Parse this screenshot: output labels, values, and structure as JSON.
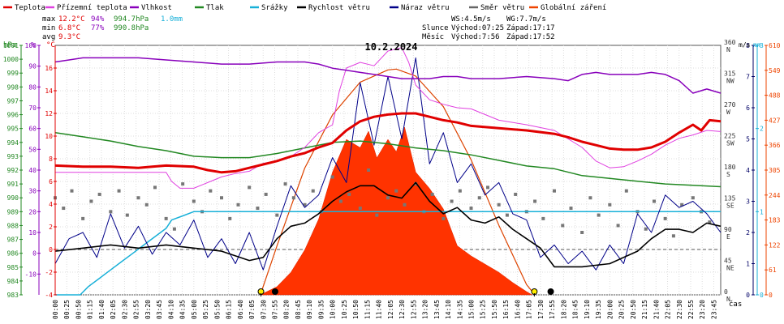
{
  "chart_data": {
    "type": "line",
    "title": "10.2.2024",
    "xlabel": "čas",
    "legend": [
      {
        "name": "Teplota",
        "color": "#e00000"
      },
      {
        "name": "Přízemní teplota",
        "color": "#e040e0"
      },
      {
        "name": "Vlhkost",
        "color": "#8800bb"
      },
      {
        "name": "Tlak",
        "color": "#228822"
      },
      {
        "name": "Srážky",
        "color": "#18b0d8"
      },
      {
        "name": "Rychlost větru",
        "color": "#000000"
      },
      {
        "name": "Náraz větru",
        "color": "#000088"
      },
      {
        "name": "Směr větru",
        "color": "#666666"
      },
      {
        "name": "Globální záření",
        "color": "#ee4400"
      }
    ],
    "stats": {
      "max": {
        "label": "max",
        "temp": "12.2°C",
        "hum": "94%",
        "press": "994.7hPa",
        "rain": "1.0mm"
      },
      "min": {
        "label": "min",
        "temp": "6.8°C",
        "hum": "77%",
        "press": "990.8hPa"
      },
      "avg": {
        "label": "avg",
        "temp": "9.3°C"
      }
    },
    "info": {
      "ws": "WS:4.5m/s",
      "wg": "WG:7.7m/s",
      "sun_label": "Slunce",
      "sun_rise": "Východ:07:25",
      "sun_set": "Západ:17:17",
      "moon_label": "Měsíc",
      "moon_rise": "Východ:7:56",
      "moon_set": "Západ:17:52"
    },
    "axes": {
      "hpa": {
        "unit": "hPa",
        "ticks": [
          "983",
          "984",
          "985",
          "986",
          "987",
          "988",
          "989",
          "990",
          "991",
          "992",
          "993",
          "994",
          "995",
          "996",
          "997",
          "998",
          "999",
          "1000",
          "1001"
        ],
        "range": [
          983,
          1001
        ]
      },
      "pct": {
        "unit": "%",
        "ticks": [
          "-10",
          "0",
          "10",
          "20",
          "30",
          "40",
          "50",
          "60",
          "70",
          "80",
          "90",
          "100"
        ],
        "range": [
          -20,
          100
        ]
      },
      "temp": {
        "unit": "°C",
        "ticks": [
          "-4",
          "-2",
          "0",
          "2",
          "4",
          "6",
          "8",
          "10",
          "12",
          "14",
          "16"
        ],
        "range": [
          -4,
          18
        ]
      },
      "dir": {
        "ticks": [
          {
            "v": "0",
            "l": "N"
          },
          {
            "v": "45",
            "l": "NE"
          },
          {
            "v": "90",
            "l": "E"
          },
          {
            "v": "135",
            "l": "SE"
          },
          {
            "v": "180",
            "l": "S"
          },
          {
            "v": "225",
            "l": "SW"
          },
          {
            "v": "270",
            "l": "W"
          },
          {
            "v": "315",
            "l": "NW"
          },
          {
            "v": "360",
            "l": "N"
          }
        ],
        "range": [
          0,
          360
        ]
      },
      "ms": {
        "unit": "m/s",
        "ticks": [
          "0",
          "1",
          "2",
          "3",
          "4",
          "5",
          "6",
          "7",
          "8"
        ],
        "range": [
          0,
          8
        ]
      },
      "mm": {
        "unit": "mm",
        "ticks": [
          "0",
          "1",
          "2",
          "3"
        ],
        "range": [
          0,
          3
        ]
      },
      "wm2": {
        "ticks": [
          "0",
          "61",
          "122",
          "183",
          "244",
          "305",
          "366",
          "427",
          "488",
          "549",
          "610"
        ],
        "range": [
          0,
          610
        ]
      }
    },
    "x_labels": [
      "00:00",
      "00:25",
      "00:50",
      "01:15",
      "01:40",
      "02:05",
      "02:30",
      "02:55",
      "03:20",
      "03:45",
      "04:10",
      "04:35",
      "05:00",
      "05:25",
      "05:50",
      "06:15",
      "06:40",
      "07:05",
      "07:30",
      "07:55",
      "08:20",
      "08:45",
      "09:10",
      "09:35",
      "10:00",
      "10:25",
      "10:50",
      "11:15",
      "11:40",
      "12:05",
      "12:30",
      "12:55",
      "13:20",
      "13:45",
      "14:10",
      "14:35",
      "15:00",
      "15:25",
      "15:50",
      "16:15",
      "16:40",
      "17:05",
      "17:30",
      "17:55",
      "18:20",
      "18:45",
      "19:10",
      "19:35",
      "20:00",
      "20:25",
      "20:50",
      "21:15",
      "21:40",
      "22:05",
      "22:30",
      "22:55",
      "23:20",
      "23:45"
    ],
    "series": {
      "temperature": {
        "name": "Teplota",
        "x_hours": [
          0,
          1,
          2,
          3,
          3.5,
          4,
          5,
          5.5,
          6,
          6.5,
          7,
          7.5,
          8,
          8.5,
          9,
          9.5,
          10,
          10.5,
          11,
          11.5,
          12,
          12.5,
          13,
          13.5,
          14,
          14.5,
          15,
          16,
          17,
          18,
          18.5,
          19,
          19.5,
          20,
          20.5,
          21,
          21.5,
          22,
          22.5,
          23,
          23.3,
          23.6,
          24
        ],
        "values": [
          7.4,
          7.3,
          7.3,
          7.2,
          7.3,
          7.4,
          7.3,
          7.0,
          6.8,
          6.9,
          7.2,
          7.5,
          7.8,
          8.2,
          8.5,
          9.0,
          9.4,
          10.5,
          11.3,
          11.7,
          11.9,
          12.0,
          12.0,
          11.7,
          11.4,
          11.2,
          10.9,
          10.7,
          10.5,
          10.2,
          9.9,
          9.5,
          9.2,
          8.9,
          8.8,
          8.8,
          9.0,
          9.5,
          10.3,
          11.0,
          10.5,
          11.4,
          11.3
        ]
      },
      "ground_temp": {
        "name": "Přízemní teplota",
        "x_hours": [
          0,
          1,
          2,
          3,
          4,
          4.2,
          4.5,
          5,
          5.5,
          6,
          6.5,
          7,
          7.5,
          8,
          8.5,
          9,
          9.5,
          10,
          10.25,
          10.5,
          11,
          11.5,
          12,
          12.5,
          12.75,
          13,
          13.5,
          14,
          14.5,
          15,
          16,
          17,
          18,
          19,
          19.5,
          20,
          20.5,
          21,
          21.5,
          22,
          22.5,
          23,
          23.5,
          24
        ],
        "values": [
          6.8,
          6.8,
          6.8,
          6.8,
          6.8,
          6.0,
          5.4,
          5.4,
          5.9,
          6.4,
          6.7,
          6.9,
          7.6,
          7.8,
          8.2,
          9.0,
          10.3,
          11.0,
          14.0,
          16.0,
          16.5,
          16.2,
          17.5,
          17.8,
          16.5,
          14.5,
          13.2,
          12.8,
          12.5,
          12.4,
          11.4,
          11.0,
          10.5,
          9.0,
          7.8,
          7.2,
          7.3,
          7.8,
          8.4,
          9.2,
          9.8,
          10.1,
          10.5,
          10.4
        ]
      },
      "humidity": {
        "name": "Vlhkost",
        "x_hours": [
          0,
          0.5,
          1,
          2,
          3,
          4,
          5,
          6,
          7,
          8,
          9,
          9.5,
          10,
          10.5,
          11,
          11.5,
          12,
          12.5,
          13,
          13.5,
          14,
          14.5,
          15,
          16,
          17,
          18,
          18.5,
          19,
          19.5,
          20,
          20.5,
          21,
          21.5,
          22,
          22.5,
          23,
          23.5,
          24
        ],
        "values": [
          92,
          93,
          94,
          94,
          94,
          93,
          92,
          91,
          91,
          92,
          92,
          91,
          89,
          88,
          87,
          86,
          85,
          84,
          84,
          84,
          85,
          85,
          84,
          84,
          85,
          84,
          83,
          86,
          87,
          86,
          86,
          86,
          87,
          86,
          83,
          77,
          79,
          77
        ]
      },
      "pressure": {
        "name": "Tlak",
        "x_hours": [
          0,
          1,
          2,
          3,
          4,
          5,
          6,
          7,
          8,
          9,
          10,
          11,
          12,
          13,
          14,
          15,
          16,
          17,
          18,
          19,
          20,
          21,
          22,
          23,
          24
        ],
        "values": [
          994.7,
          994.4,
          994.1,
          993.7,
          993.4,
          993.0,
          992.9,
          992.9,
          993.2,
          993.6,
          994.0,
          994.1,
          993.9,
          993.6,
          993.4,
          993.1,
          992.7,
          992.3,
          992.1,
          991.6,
          991.4,
          991.2,
          991.0,
          990.9,
          990.8
        ]
      },
      "rain": {
        "name": "Srážky",
        "x_hours": [
          0,
          0.9,
          1.2,
          1.6,
          2.0,
          2.4,
          2.8,
          3.2,
          3.6,
          4.0,
          4.2,
          4.6,
          5.0,
          5.5,
          24
        ],
        "values": [
          0,
          0,
          0.1,
          0.2,
          0.3,
          0.4,
          0.5,
          0.6,
          0.7,
          0.8,
          0.9,
          0.95,
          1.0,
          1.0,
          1.0
        ]
      },
      "wind_speed": {
        "name": "Rychlost větru",
        "x_hours": [
          0,
          1,
          2,
          3,
          4,
          5,
          6,
          7,
          7.5,
          8,
          8.5,
          9,
          9.5,
          10,
          10.5,
          11,
          11.5,
          12,
          12.5,
          13,
          13.5,
          14,
          14.5,
          15,
          15.5,
          16,
          16.5,
          17,
          17.5,
          18,
          19,
          20,
          21,
          21.5,
          22,
          22.5,
          23,
          23.5,
          24
        ],
        "values": [
          1.4,
          1.5,
          1.6,
          1.5,
          1.6,
          1.5,
          1.4,
          1.1,
          1.2,
          1.8,
          2.2,
          2.3,
          2.6,
          3.0,
          3.3,
          3.5,
          3.5,
          3.2,
          3.1,
          3.6,
          3.0,
          2.6,
          2.8,
          2.4,
          2.3,
          2.5,
          2.1,
          1.8,
          1.5,
          0.9,
          0.9,
          1.0,
          1.4,
          1.8,
          2.1,
          2.1,
          2.0,
          2.3,
          2.2
        ]
      },
      "wind_gust": {
        "name": "Náraz větru",
        "x_hours": [
          0,
          0.5,
          1,
          1.5,
          2,
          2.5,
          3,
          3.5,
          4,
          4.5,
          5,
          5.5,
          6,
          6.5,
          7,
          7.5,
          8,
          8.5,
          9,
          9.5,
          10,
          10.5,
          11,
          11.5,
          12,
          12.5,
          13,
          13.5,
          14,
          14.5,
          15,
          15.5,
          16,
          16.5,
          17,
          17.5,
          18,
          18.5,
          19,
          19.5,
          20,
          20.5,
          21,
          21.5,
          22,
          22.5,
          23,
          23.5,
          24
        ],
        "values": [
          1.0,
          1.8,
          2.0,
          1.2,
          2.6,
          1.5,
          2.2,
          1.3,
          2.0,
          1.6,
          2.4,
          1.2,
          1.8,
          1.0,
          2.0,
          0.8,
          2.2,
          3.5,
          2.8,
          3.2,
          4.4,
          3.6,
          6.8,
          4.8,
          7.0,
          5.0,
          7.6,
          4.2,
          5.2,
          3.6,
          4.2,
          3.2,
          3.6,
          2.6,
          2.4,
          1.2,
          1.6,
          1.0,
          1.4,
          0.8,
          1.6,
          1.0,
          2.6,
          2.0,
          3.2,
          2.8,
          3.0,
          2.6,
          2.0
        ]
      },
      "wind_dir": {
        "name": "Směr větru",
        "x_hours": [
          0,
          0.3,
          0.6,
          1,
          1.3,
          1.6,
          2,
          2.3,
          2.6,
          3,
          3.3,
          3.6,
          4,
          4.3,
          4.6,
          5,
          5.3,
          5.6,
          6,
          6.3,
          6.6,
          7,
          7.3,
          7.6,
          8,
          8.3,
          8.6,
          9,
          9.3,
          9.6,
          10,
          10.3,
          10.6,
          11,
          11.3,
          11.6,
          12,
          12.3,
          12.6,
          13,
          13.3,
          13.6,
          14,
          14.3,
          14.6,
          15,
          15.3,
          15.6,
          16,
          16.3,
          16.6,
          17,
          17.3,
          17.6,
          18,
          18.3,
          18.6,
          19,
          19.3,
          19.6,
          20,
          20.3,
          20.6,
          21,
          21.3,
          21.6,
          22,
          22.3,
          22.6,
          23,
          23.3,
          23.6
        ],
        "values": [
          140,
          125,
          150,
          110,
          135,
          145,
          120,
          150,
          115,
          140,
          130,
          155,
          110,
          95,
          160,
          135,
          120,
          150,
          140,
          110,
          130,
          155,
          125,
          145,
          115,
          160,
          140,
          130,
          150,
          120,
          170,
          135,
          145,
          125,
          180,
          115,
          140,
          150,
          130,
          160,
          120,
          145,
          110,
          135,
          150,
          125,
          140,
          155,
          130,
          115,
          145,
          120,
          135,
          110,
          150,
          100,
          125,
          90,
          140,
          115,
          130,
          100,
          150,
          120,
          95,
          135,
          110,
          85,
          130,
          140,
          120,
          105
        ]
      },
      "radiation": {
        "name": "Globální záření",
        "x_hours": [
          7.4,
          8,
          8.5,
          9,
          9.5,
          10,
          10.5,
          11,
          11.3,
          11.6,
          12,
          12.3,
          12.6,
          13,
          13.5,
          14,
          14.5,
          15,
          15.5,
          16,
          16.5,
          17,
          17.2
        ],
        "values": [
          0,
          20,
          55,
          110,
          185,
          300,
          380,
          360,
          400,
          335,
          380,
          350,
          410,
          300,
          260,
          210,
          120,
          95,
          75,
          55,
          30,
          8,
          0
        ]
      },
      "radiation_theoretical": {
        "name": "Globální záření",
        "x_hours": [
          7.4,
          8,
          9,
          10,
          11,
          12,
          12.3,
          13,
          14,
          15,
          16,
          17,
          17.3
        ],
        "values": [
          0,
          120,
          310,
          440,
          520,
          550,
          552,
          535,
          460,
          330,
          170,
          25,
          0
        ]
      }
    },
    "markers": {
      "sunrise_hour": 7.42,
      "sunset_hour": 17.28,
      "moonrise_hour": 7.93,
      "moonset_hour": 17.87
    }
  }
}
